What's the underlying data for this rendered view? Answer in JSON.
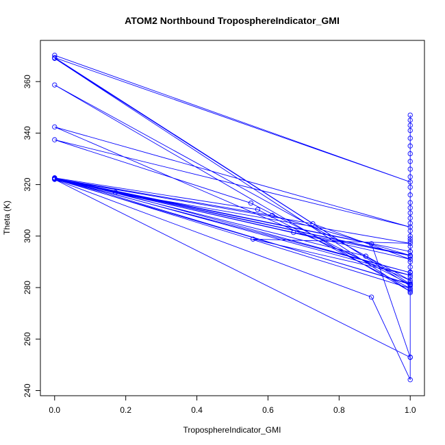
{
  "chart_data": {
    "type": "line",
    "title": "ATOM2 Northbound TroposphereIndicator_GMI",
    "xlabel": "TroposphereIndicator_GMI",
    "ylabel": "Theta (K)",
    "xlim": [
      -0.04,
      1.04
    ],
    "ylim": [
      238,
      376
    ],
    "xticks": [
      "0.0",
      "0.2",
      "0.4",
      "0.6",
      "0.8",
      "1.0"
    ],
    "yticks": [
      "240",
      "260",
      "280",
      "300",
      "320",
      "340",
      "360"
    ],
    "xtick_values": [
      0,
      0.2,
      0.4,
      0.6,
      0.8,
      1.0
    ],
    "ytick_values": [
      240,
      260,
      280,
      300,
      320,
      340,
      360
    ],
    "grid": false,
    "legend": "none",
    "series": [
      {
        "color": "#0000ff",
        "line": true,
        "markers": "open-circle",
        "x": [
          0.0,
          1.0,
          0.0,
          1.0,
          0.0,
          1.0,
          0.0,
          1.0,
          0.0,
          1.0,
          0.0,
          0.552,
          1.0,
          0.0,
          0.571,
          1.0,
          0.0,
          0.612,
          1.0,
          0.0,
          1.0,
          0.0,
          0.672,
          1.0,
          0.0,
          0.726,
          1.0,
          0.0,
          1.0,
          0.171,
          1.0,
          0.558,
          1.0,
          0.0,
          0.875,
          1.0,
          0.0,
          0.891,
          1.0,
          0.0,
          0.891,
          1.0,
          1.0,
          1.0,
          1.0,
          1.0,
          1.0,
          1.0,
          1.0,
          1.0,
          1.0,
          1.0,
          1.0,
          1.0,
          1.0,
          1.0,
          1.0,
          1.0,
          1.0,
          1.0,
          1.0,
          1.0,
          1.0,
          1.0,
          1.0,
          1.0,
          1.0,
          1.0,
          1.0,
          1.0,
          1.0,
          1.0,
          1.0,
          1.0,
          1.0
        ],
        "y": [
          370.2,
          321.0,
          369.3,
          280.6,
          369.0,
          278.5,
          358.7,
          282.8,
          342.4,
          303.5,
          337.4,
          312.8,
          281.2,
          322.6,
          310.3,
          279.7,
          322.4,
          308.0,
          292.5,
          322.4,
          294.0,
          322.3,
          301.4,
          292.4,
          322.2,
          304.8,
          291.0,
          322.3,
          285.8,
          317.0,
          297.2,
          298.8,
          284.8,
          322.6,
          292.2,
          281.4,
          322.1,
          297.0,
          252.9,
          322.0,
          276.3,
          244.2,
          347.0,
          345.0,
          343.0,
          341.0,
          338.0,
          335.0,
          332.0,
          329.0,
          326.0,
          323.0,
          319.0,
          316.0,
          313.0,
          311.0,
          309.0,
          307.0,
          305.0,
          302.0,
          300.0,
          299.0,
          298.0,
          296.0,
          294.0,
          292.0,
          290.0,
          288.0,
          286.0,
          284.0,
          282.0,
          281.0,
          279.0,
          278.0,
          253.0
        ]
      }
    ]
  }
}
